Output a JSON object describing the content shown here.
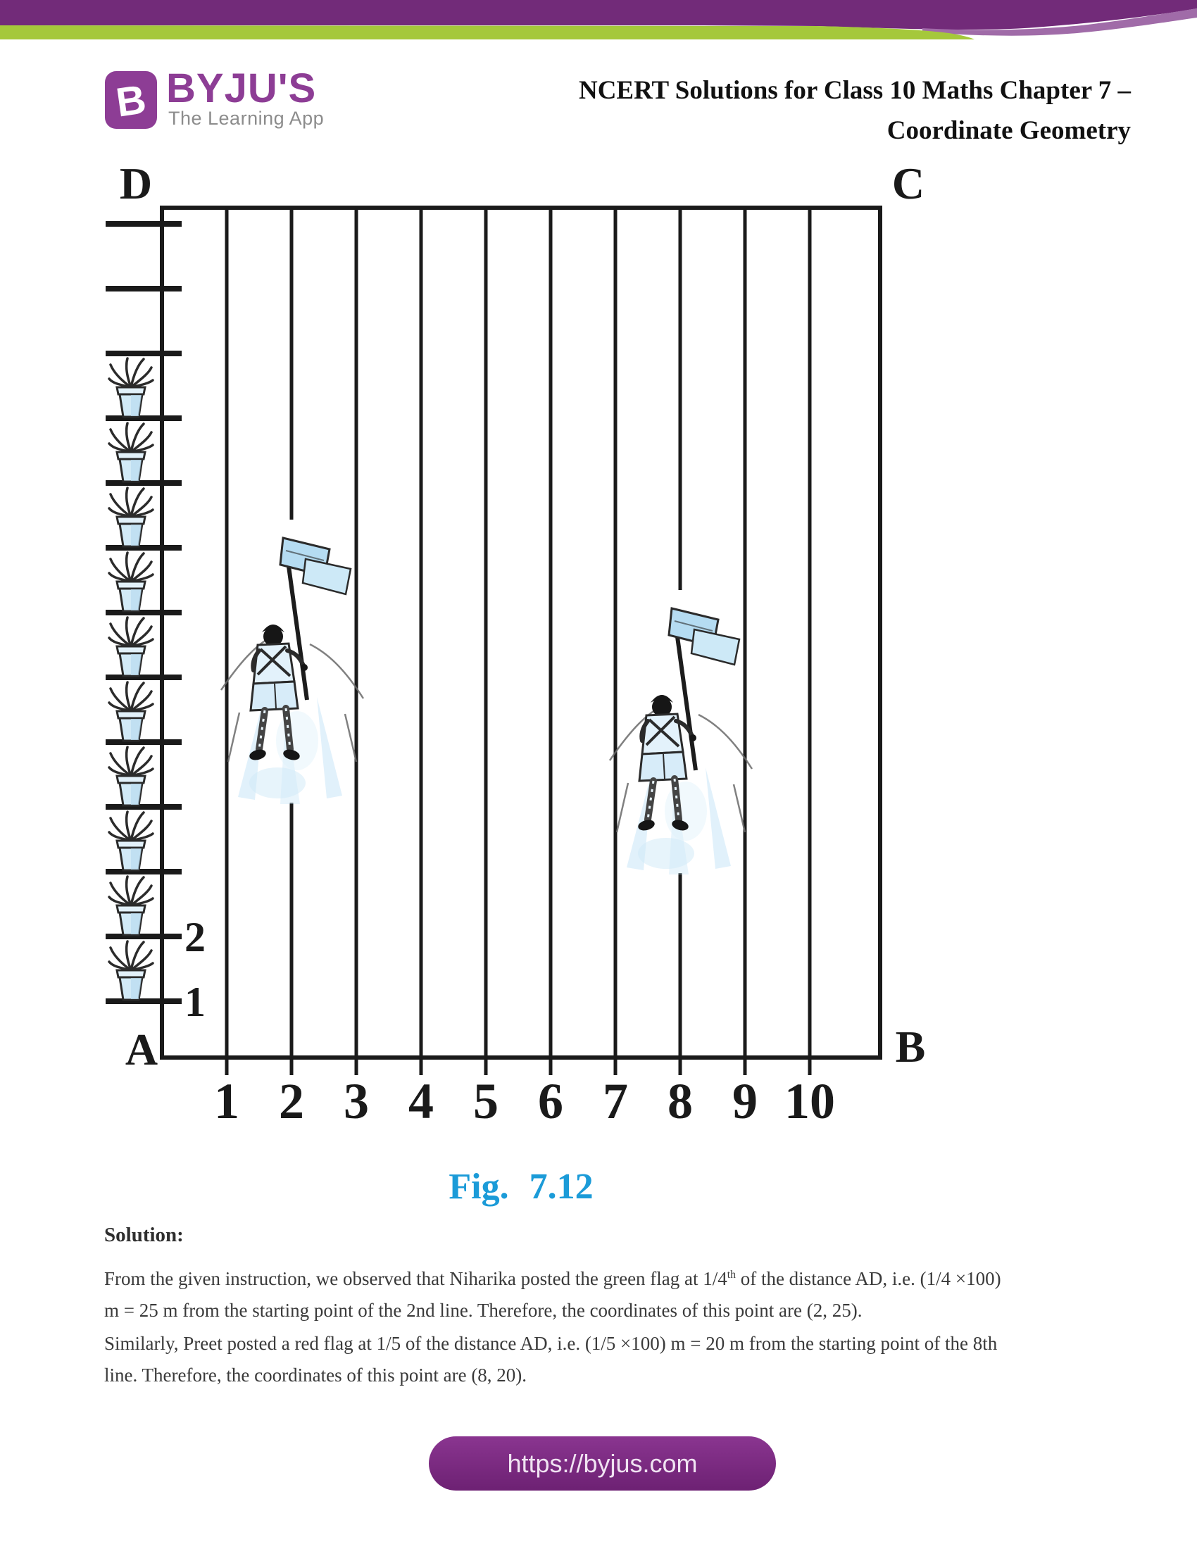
{
  "colors": {
    "banner_purple": "#722b79",
    "banner_light_purple": "#a06ba8",
    "banner_green": "#a5c83b",
    "logo_purple": "#8d3d95",
    "tagline_gray": "#8c8c8c",
    "caption_blue": "#1b9bd8",
    "pill_text": "#f0e3f2",
    "ink": "#1a1a1a"
  },
  "logo": {
    "icon_letter": "B",
    "name": "BYJU'S",
    "tagline": "The Learning App"
  },
  "header": {
    "title_line1": "NCERT Solutions for Class 10 Maths Chapter 7 –",
    "title_line2": "Coordinate Geometry"
  },
  "figure": {
    "caption": "Fig. 7.12",
    "corner_labels": {
      "top_left": "D",
      "top_right": "C",
      "bottom_left": "A",
      "bottom_right": "B"
    },
    "column_labels": [
      "1",
      "2",
      "3",
      "4",
      "5",
      "6",
      "7",
      "8",
      "9",
      "10"
    ],
    "row_tick_count": 13,
    "row_labels": [
      {
        "tick_index": 11,
        "label": "2"
      },
      {
        "tick_index": 12,
        "label": "1"
      }
    ],
    "pot_count": 10,
    "flag_columns": [
      2,
      8
    ]
  },
  "solution": {
    "heading": "Solution:",
    "p1": {
      "l1a": "From the given instruction, we observed that Niharika posted the green flag at 1/4",
      "sup": "th",
      "l1b": " of the distance AD, i.e. (1/4 ×100)",
      "l2": "m = 25 m from the starting point of the 2nd line. Therefore, the coordinates of this point are (2, 25)."
    },
    "p2": {
      "l1": "Similarly, Preet posted a red flag at 1/5 of the distance AD, i.e. (1/5 ×100) m = 20 m from the starting point of the 8th",
      "l2": "line. Therefore, the coordinates of this point are (8, 20)."
    }
  },
  "footer": {
    "url": "https://byjus.com"
  }
}
